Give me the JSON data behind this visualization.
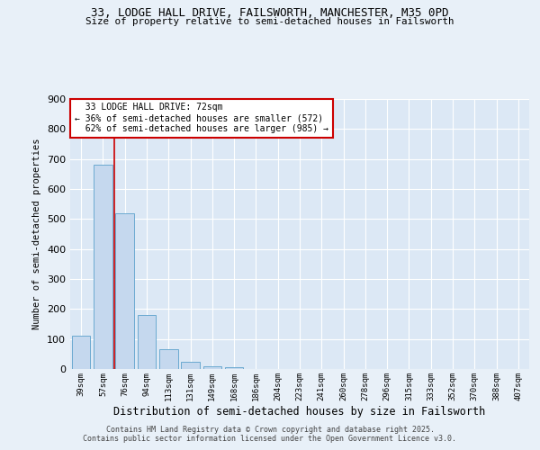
{
  "title1": "33, LODGE HALL DRIVE, FAILSWORTH, MANCHESTER, M35 0PD",
  "title2": "Size of property relative to semi-detached houses in Failsworth",
  "xlabel": "Distribution of semi-detached houses by size in Failsworth",
  "ylabel": "Number of semi-detached properties",
  "categories": [
    "39sqm",
    "57sqm",
    "76sqm",
    "94sqm",
    "113sqm",
    "131sqm",
    "149sqm",
    "168sqm",
    "186sqm",
    "204sqm",
    "223sqm",
    "241sqm",
    "260sqm",
    "278sqm",
    "296sqm",
    "315sqm",
    "333sqm",
    "352sqm",
    "370sqm",
    "388sqm",
    "407sqm"
  ],
  "values": [
    110,
    680,
    520,
    180,
    65,
    25,
    10,
    5,
    1,
    0,
    0,
    0,
    0,
    0,
    0,
    0,
    0,
    0,
    0,
    0,
    0
  ],
  "bar_color": "#c5d8ee",
  "bar_edge_color": "#6baad0",
  "property_line_index": 2,
  "property_label": "33 LODGE HALL DRIVE: 72sqm",
  "pct_smaller": "36%",
  "num_smaller": 572,
  "pct_larger": "62%",
  "num_larger": 985,
  "annotation_box_color": "#cc0000",
  "ylim": [
    0,
    900
  ],
  "yticks": [
    0,
    100,
    200,
    300,
    400,
    500,
    600,
    700,
    800,
    900
  ],
  "bg_color": "#e8f0f8",
  "plot_bg_color": "#dce8f5",
  "grid_color": "#ffffff",
  "footer1": "Contains HM Land Registry data © Crown copyright and database right 2025.",
  "footer2": "Contains public sector information licensed under the Open Government Licence v3.0."
}
